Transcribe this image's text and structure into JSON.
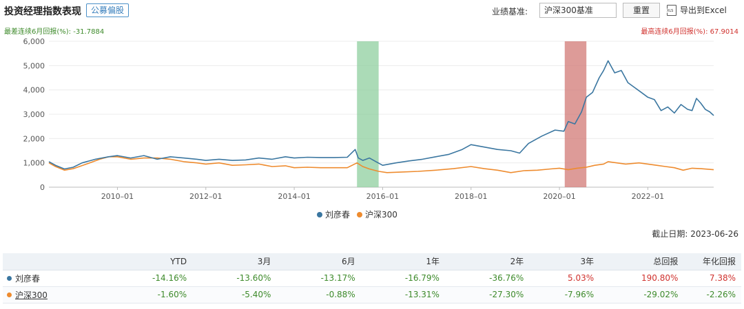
{
  "header": {
    "title": "投资经理指数表现",
    "tag": "公募偏股",
    "benchmark_label": "业绩基准:",
    "benchmark_value": "沪深300基准",
    "reset_label": "重置",
    "export_label": "导出到Excel"
  },
  "extremes": {
    "min_label": "最差连续6月回报(%): -31.7884",
    "max_label": "最高连续6月回报(%): 67.9014"
  },
  "colors": {
    "manager": "#3a76a0",
    "index": "#ee8b2e",
    "green_band": "#8fcf9f",
    "red_band": "#d27a76"
  },
  "chart_data": {
    "type": "line",
    "yticks": [
      "0",
      "1,000",
      "2,000",
      "3,000",
      "4,000",
      "5,000",
      "6,000"
    ],
    "ylim": [
      0,
      6000
    ],
    "xticks": [
      "2010–01",
      "2012–01",
      "2014–01",
      "2016–01",
      "2018–01",
      "2020–01",
      "2022–01"
    ],
    "xrange": [
      2008.45,
      2023.49
    ],
    "shaded_bands": [
      {
        "start": 2015.42,
        "end": 2015.91,
        "color": "green"
      },
      {
        "start": 2020.12,
        "end": 2020.61,
        "color": "red"
      }
    ],
    "series": [
      {
        "name": "刘彦春",
        "x": [
          2008.45,
          2008.6,
          2008.8,
          2009.0,
          2009.2,
          2009.5,
          2009.8,
          2010.0,
          2010.3,
          2010.6,
          2010.9,
          2011.2,
          2011.5,
          2011.8,
          2012.0,
          2012.3,
          2012.6,
          2012.9,
          2013.2,
          2013.5,
          2013.8,
          2014.0,
          2014.3,
          2014.6,
          2014.9,
          2015.2,
          2015.38,
          2015.45,
          2015.55,
          2015.7,
          2015.85,
          2016.0,
          2016.3,
          2016.6,
          2016.9,
          2017.2,
          2017.5,
          2017.8,
          2018.0,
          2018.3,
          2018.6,
          2018.9,
          2019.1,
          2019.3,
          2019.6,
          2019.9,
          2020.1,
          2020.2,
          2020.35,
          2020.5,
          2020.61,
          2020.75,
          2020.9,
          2021.0,
          2021.1,
          2021.25,
          2021.4,
          2021.55,
          2021.7,
          2021.85,
          2022.0,
          2022.15,
          2022.3,
          2022.45,
          2022.6,
          2022.75,
          2022.9,
          2023.0,
          2023.1,
          2023.2,
          2023.3,
          2023.4,
          2023.49
        ],
        "values": [
          1050,
          900,
          750,
          820,
          1000,
          1150,
          1250,
          1300,
          1200,
          1300,
          1150,
          1250,
          1200,
          1150,
          1100,
          1150,
          1100,
          1120,
          1200,
          1150,
          1250,
          1200,
          1230,
          1220,
          1220,
          1230,
          1550,
          1200,
          1100,
          1200,
          1050,
          900,
          1000,
          1080,
          1150,
          1250,
          1350,
          1550,
          1750,
          1650,
          1550,
          1500,
          1400,
          1800,
          2100,
          2350,
          2300,
          2700,
          2600,
          3100,
          3700,
          3900,
          4500,
          4800,
          5200,
          4700,
          4800,
          4300,
          4100,
          3900,
          3700,
          3600,
          3150,
          3300,
          3050,
          3400,
          3200,
          3150,
          3650,
          3450,
          3200,
          3100,
          2950
        ]
      },
      {
        "name": "沪深300",
        "x": [
          2008.45,
          2008.6,
          2008.8,
          2009.0,
          2009.3,
          2009.6,
          2009.8,
          2010.0,
          2010.3,
          2010.6,
          2010.9,
          2011.2,
          2011.5,
          2011.8,
          2012.0,
          2012.3,
          2012.6,
          2012.9,
          2013.2,
          2013.5,
          2013.8,
          2014.0,
          2014.3,
          2014.6,
          2014.9,
          2015.2,
          2015.42,
          2015.55,
          2015.7,
          2015.91,
          2016.1,
          2016.4,
          2016.8,
          2017.2,
          2017.6,
          2018.0,
          2018.3,
          2018.6,
          2018.9,
          2019.2,
          2019.5,
          2019.8,
          2020.0,
          2020.2,
          2020.4,
          2020.61,
          2020.8,
          2021.0,
          2021.1,
          2021.3,
          2021.5,
          2021.8,
          2022.0,
          2022.2,
          2022.4,
          2022.6,
          2022.8,
          2023.0,
          2023.2,
          2023.49
        ],
        "values": [
          1000,
          850,
          700,
          760,
          950,
          1150,
          1250,
          1250,
          1150,
          1200,
          1200,
          1150,
          1050,
          1000,
          950,
          1000,
          900,
          920,
          950,
          850,
          880,
          800,
          820,
          800,
          800,
          800,
          1000,
          850,
          750,
          650,
          600,
          620,
          650,
          700,
          760,
          850,
          760,
          700,
          600,
          680,
          700,
          750,
          780,
          720,
          780,
          820,
          900,
          950,
          1050,
          1000,
          950,
          1000,
          950,
          900,
          850,
          800,
          700,
          780,
          760,
          720
        ]
      }
    ]
  },
  "deadline": "截止日期: 2023-06-26",
  "table": {
    "headers": [
      "",
      "YTD",
      "3月",
      "6月",
      "1年",
      "2年",
      "3年",
      "总回报",
      "年化回报"
    ],
    "rows": [
      {
        "name": "刘彦春",
        "values": [
          "-14.16%",
          "-13.60%",
          "-13.17%",
          "-16.79%",
          "-36.76%",
          "5.03%",
          "190.80%",
          "7.38%"
        ]
      },
      {
        "name": "沪深300",
        "values": [
          "-1.60%",
          "-5.40%",
          "-0.88%",
          "-13.31%",
          "-27.30%",
          "-7.96%",
          "-29.02%",
          "-2.26%"
        ]
      }
    ]
  }
}
